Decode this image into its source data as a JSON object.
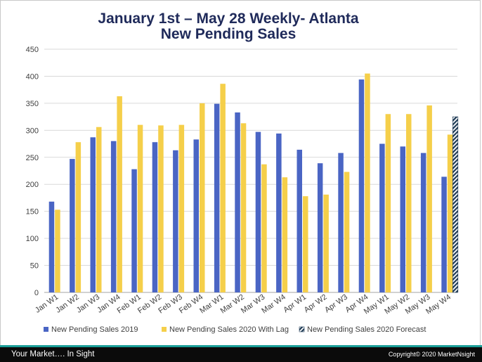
{
  "header": {
    "title_line1": "January 1st – May 28 Weekly- Atlanta",
    "title_line2": "New Pending Sales"
  },
  "footer": {
    "tagline": "Your Market….  In Sight",
    "copyright": "Copyright© 2020 MarketNsight"
  },
  "colors": {
    "series_2019": "#4a65c4",
    "series_2020": "#f5cf4a",
    "series_forecast": "#1f3b55",
    "grid": "#d9d9d9",
    "axis_text": "#404040"
  },
  "chart_data": {
    "type": "bar",
    "title": "January 1st – May 28 Weekly- Atlanta New Pending Sales",
    "xlabel": "",
    "ylabel": "",
    "ylim": [
      0,
      450
    ],
    "yticks": [
      0,
      50,
      100,
      150,
      200,
      250,
      300,
      350,
      400,
      450
    ],
    "grid": true,
    "legend_position": "bottom",
    "categories": [
      "Jan W1",
      "Jan W2",
      "Jan W3",
      "Jan W4",
      "Feb W1",
      "Feb W2",
      "Feb W3",
      "Feb W4",
      "Mar W1",
      "Mar W2",
      "Mar W3",
      "Mar W4",
      "Apr W1",
      "Apr W2",
      "Apr W3",
      "Apr W4",
      "May W1",
      "May W2",
      "May W3",
      "May W4"
    ],
    "series": [
      {
        "name": "New Pending Sales 2019",
        "values": [
          168,
          247,
          287,
          280,
          228,
          278,
          263,
          283,
          349,
          333,
          297,
          294,
          264,
          239,
          258,
          394,
          275,
          270,
          258,
          214
        ]
      },
      {
        "name": "New Pending Sales 2020 With Lag",
        "values": [
          153,
          278,
          306,
          363,
          310,
          309,
          310,
          350,
          386,
          313,
          237,
          213,
          178,
          181,
          223,
          405,
          330,
          330,
          346,
          292
        ]
      },
      {
        "name": "New Pending Sales 2020 Forecast",
        "values": [
          null,
          null,
          null,
          null,
          null,
          null,
          null,
          null,
          null,
          null,
          null,
          null,
          null,
          null,
          null,
          null,
          null,
          null,
          null,
          325
        ]
      }
    ]
  }
}
